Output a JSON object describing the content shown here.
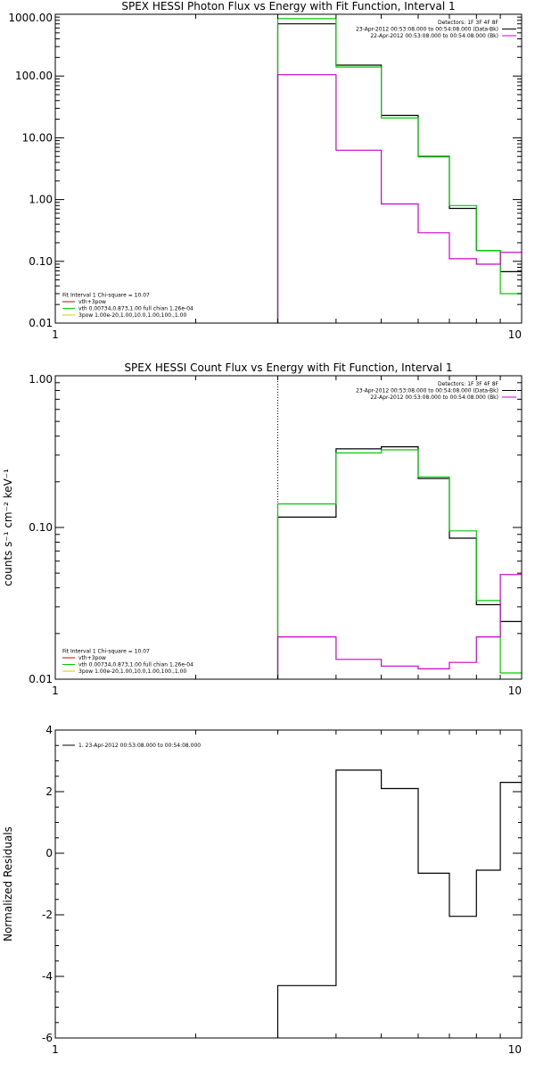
{
  "chart_data": [
    {
      "type": "line",
      "step": true,
      "title": "SPEX HESSI Photon Flux vs Energy with Fit Function, Interval 1",
      "xscale": "log",
      "yscale": "log",
      "xlim": [
        1,
        10
      ],
      "ylim": [
        0.01,
        1000
      ],
      "xticks": [
        1,
        10
      ],
      "xtick_labels": [
        "1",
        "10"
      ],
      "yticks": [
        0.01,
        0.1,
        1,
        10,
        100,
        1000
      ],
      "ytick_labels": [
        "0.01",
        "0.10",
        "1.00",
        "10.00",
        "100.00",
        "1000.00"
      ],
      "ylabel": "",
      "vline_x": 3,
      "bin_edges": [
        3,
        4,
        5,
        6,
        7,
        8,
        9,
        10
      ],
      "series": [
        {
          "color": "#000000",
          "values": [
            700,
            150,
            23,
            5.0,
            0.72,
            0.15,
            0.068
          ]
        },
        {
          "color": "#00cc00",
          "values": [
            850,
            140,
            21,
            4.9,
            0.8,
            0.15,
            0.03
          ]
        },
        {
          "color": "#cc00cc",
          "values": [
            105,
            6.3,
            0.85,
            0.29,
            0.11,
            0.09,
            0.14
          ]
        }
      ],
      "legend_top": [
        {
          "text": "Detectors: 1F 3F 4F 8F",
          "color": ""
        },
        {
          "text": "23-Apr-2012 00:53:08.000 to 00:54:08.000 (Data-Bk)",
          "color": "#000000"
        },
        {
          "text": "22-Apr-2012 00:53:08.000 to 00:54:08.000 (Bk)",
          "color": "#cc00cc"
        }
      ],
      "legend_bottom": [
        {
          "text": "Fit Interval 1    Chi-square = 10.07",
          "color": ""
        },
        {
          "text": "vth+3pow",
          "color": "#cc0000"
        },
        {
          "text": "vth 0.00734,0.873,1.00   full chian 1.26e-04",
          "color": "#00cc00"
        },
        {
          "text": "3pow 1.00e-20,1.00,10.0,1.00,100.,1.00",
          "color": "#cccc00"
        }
      ]
    },
    {
      "type": "line",
      "step": true,
      "title": "SPEX HESSI Count Flux vs Energy with Fit Function, Interval 1",
      "xscale": "log",
      "yscale": "log",
      "xlim": [
        1,
        10
      ],
      "ylim": [
        0.01,
        1
      ],
      "xticks": [
        1,
        10
      ],
      "xtick_labels": [
        "1",
        "10"
      ],
      "yticks": [
        0.01,
        0.1,
        1
      ],
      "ytick_labels": [
        "0.01",
        "0.10",
        "1.00"
      ],
      "ylabel": "counts s⁻¹ cm⁻² keV⁻¹",
      "vline_x": 3,
      "bin_edges": [
        3,
        4,
        5,
        6,
        7,
        8,
        9,
        10
      ],
      "series": [
        {
          "color": "#000000",
          "values": [
            0.117,
            0.33,
            0.34,
            0.21,
            0.085,
            0.031,
            0.024
          ]
        },
        {
          "color": "#00cc00",
          "values": [
            0.143,
            0.31,
            0.325,
            0.215,
            0.095,
            0.033,
            0.011
          ]
        },
        {
          "color": "#cc00cc",
          "values": [
            0.019,
            0.0135,
            0.0122,
            0.0117,
            0.0129,
            0.019,
            0.049
          ]
        }
      ],
      "legend_top": [
        {
          "text": "Detectors: 1F 3F 4F 8F",
          "color": ""
        },
        {
          "text": "23-Apr-2012 00:53:08.000 to 00:54:08.000 (Data-Bk)",
          "color": "#000000"
        },
        {
          "text": "22-Apr-2012 00:53:08.000 to 00:54:08.000 (Bk)",
          "color": "#cc00cc"
        }
      ],
      "legend_bottom": [
        {
          "text": "Fit Interval 1    Chi-square = 10.07",
          "color": ""
        },
        {
          "text": "vth+3pow",
          "color": "#cc0000"
        },
        {
          "text": "vth 0.00734,0.873,1.00   full chian 1.26e-04",
          "color": "#00cc00"
        },
        {
          "text": "3pow 1.00e-20,1.00,10.0,1.00,100.,1.00",
          "color": "#cccc00"
        }
      ]
    },
    {
      "type": "line",
      "step": true,
      "title": "",
      "xscale": "log",
      "yscale": "linear",
      "xlim": [
        1,
        10
      ],
      "ylim": [
        -6,
        4
      ],
      "xticks": [
        1,
        10
      ],
      "xtick_labels": [
        "1",
        "10"
      ],
      "yticks": [
        -6,
        -4,
        -2,
        0,
        2,
        4
      ],
      "ytick_labels": [
        "-6",
        "-4",
        "-2",
        "0",
        "2",
        "4"
      ],
      "ylabel": "Normalized Residuals",
      "bin_edges": [
        3,
        4,
        5,
        6,
        7,
        8,
        9,
        10
      ],
      "series": [
        {
          "color": "#000000",
          "values": [
            -4.3,
            2.7,
            2.1,
            -0.65,
            -2.05,
            -0.55,
            2.3
          ]
        }
      ],
      "legend_top_left": [
        {
          "text": "1. 23-Apr-2012 00:53:08.000 to 00:54:08.000",
          "color": "#000000"
        }
      ]
    }
  ]
}
